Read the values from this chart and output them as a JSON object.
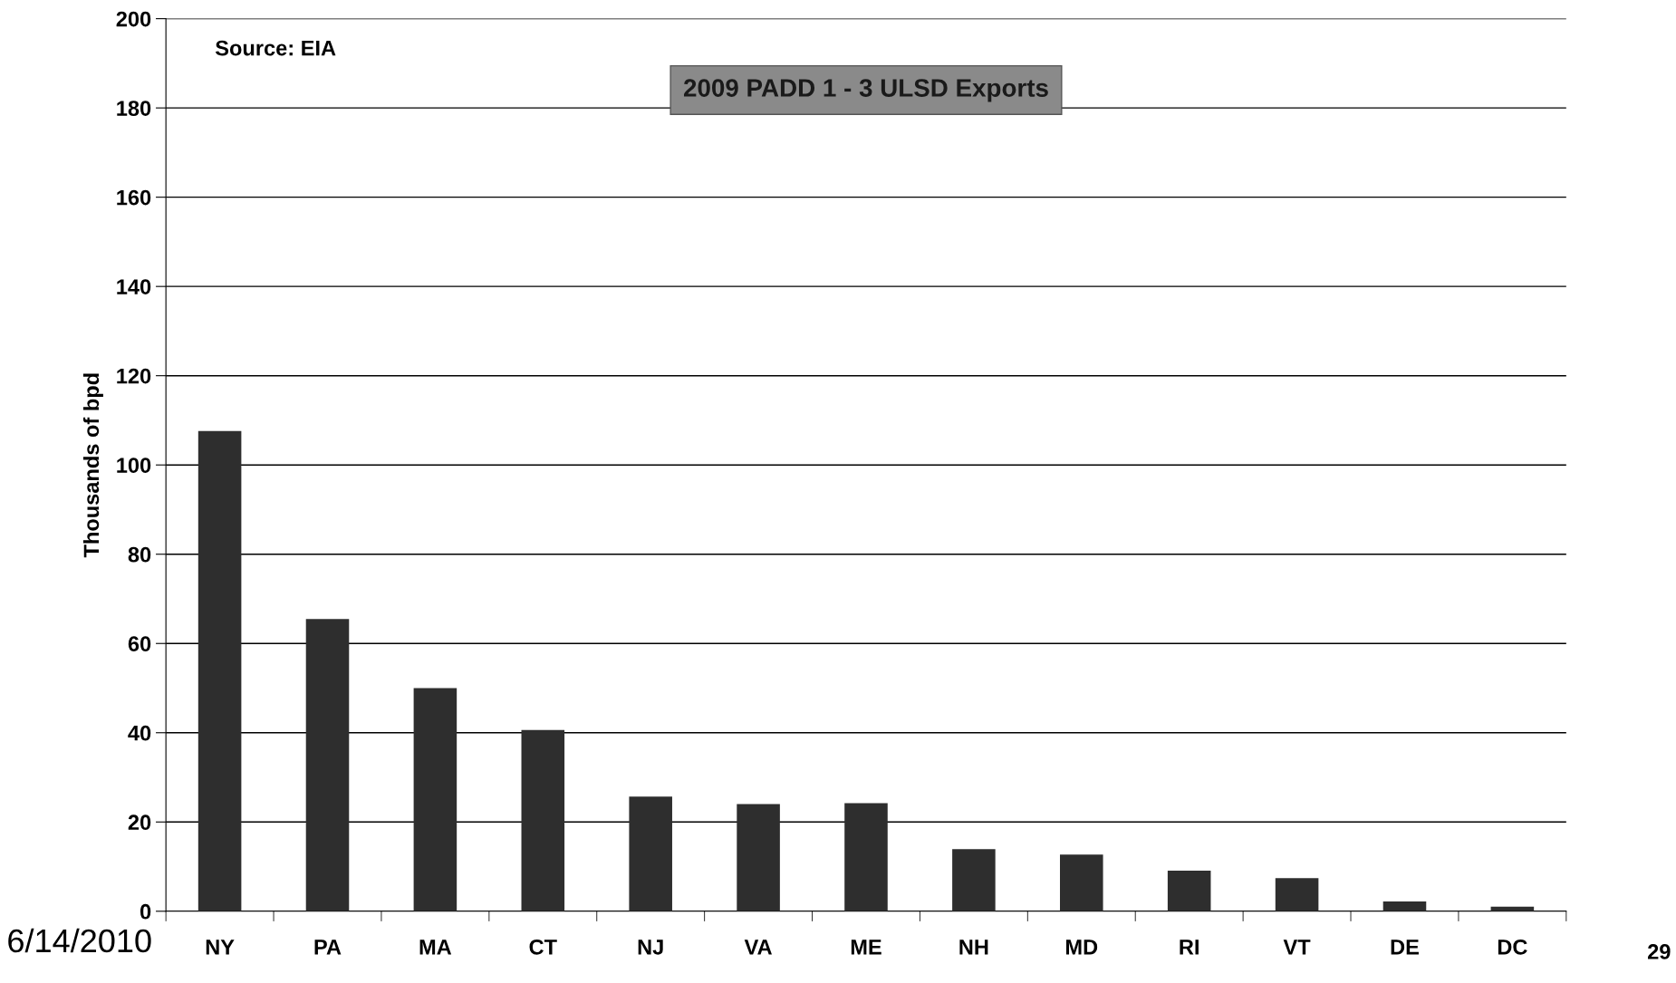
{
  "chart_data": {
    "type": "bar",
    "title": "2009 PADD 1 - 3 ULSD Exports",
    "ylabel": "Thousands of bpd",
    "categories": [
      "NY",
      "PA",
      "MA",
      "CT",
      "NJ",
      "VA",
      "ME",
      "NH",
      "MD",
      "RI",
      "VT",
      "DE",
      "DC"
    ],
    "values": [
      107.6,
      65.5,
      50,
      40.6,
      25.7,
      24,
      24.2,
      13.9,
      12.7,
      9.1,
      7.4,
      2.2,
      1.0
    ],
    "color": "#2e2e2e",
    "ylim": [
      0,
      200
    ],
    "yticks": [
      0,
      20,
      40,
      60,
      80,
      100,
      120,
      140,
      160,
      180,
      200
    ],
    "grid": "y",
    "annotations": [
      "Source: EIA",
      "6/14/2010",
      "29"
    ]
  }
}
